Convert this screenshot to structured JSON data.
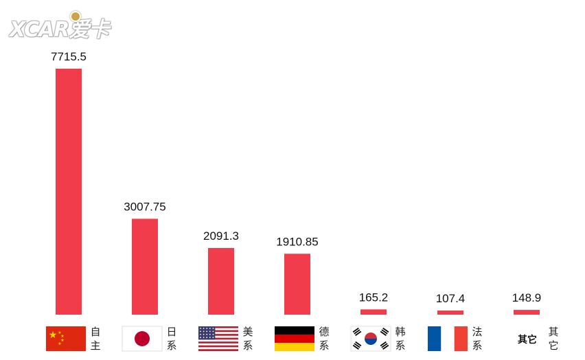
{
  "watermark": {
    "text": "XCAR爱卡"
  },
  "chart_data": {
    "type": "bar",
    "categories": [
      "自主",
      "日系",
      "美系",
      "德系",
      "韩系",
      "法系",
      "其它"
    ],
    "values": [
      7715.5,
      3007.75,
      2091.3,
      1910.85,
      165.2,
      107.4,
      148.9
    ],
    "data_labels": [
      "7715.5",
      "3007.75",
      "2091.3",
      "1910.85",
      "165.2",
      "107.4",
      "148.9"
    ],
    "flags": [
      "china-flag-icon",
      "japan-flag-icon",
      "usa-flag-icon",
      "germany-flag-icon",
      "korea-flag-icon",
      "france-flag-icon",
      "other-icon"
    ],
    "title": "",
    "xlabel": "",
    "ylabel": "",
    "bar_color": "#f03c4b",
    "ylim": [
      0,
      7715.5
    ],
    "grid": false,
    "legend": "none"
  }
}
